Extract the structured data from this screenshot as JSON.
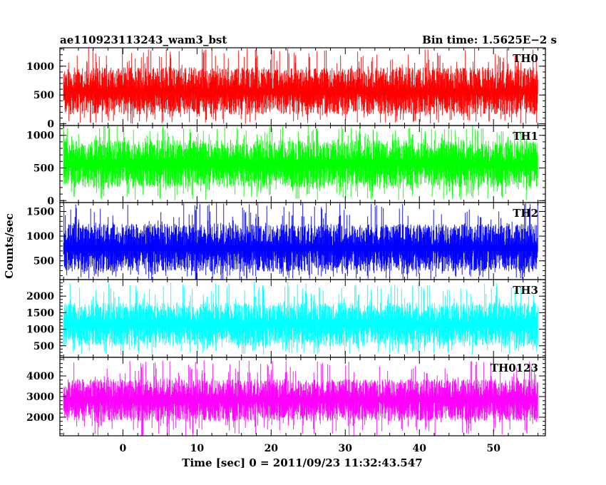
{
  "chart_data": {
    "type": "line",
    "title_left": "ae110923113243_wam3_bst",
    "title_right": "Bin time: 1.5625E−2 s",
    "xlabel": "Time [sec] 0 = 2011/09/23 11:32:43.547",
    "ylabel": "Counts/sec",
    "xlim": [
      -8.5,
      57
    ],
    "x_data_range": [
      -8,
      56
    ],
    "x_ticks": [
      0,
      10,
      20,
      30,
      40,
      50
    ],
    "x_tick_labels": [
      "0",
      "10",
      "20",
      "30",
      "40",
      "50"
    ],
    "panels": [
      {
        "name": "TH0",
        "color": "#ff0000",
        "ylim": [
          -30,
          1320
        ],
        "y_ticks": [
          0,
          500,
          1000
        ],
        "y_tick_labels": [
          "0",
          "500",
          "1000"
        ],
        "signal": {
          "mean": 560,
          "low": 160,
          "high": 980,
          "min": 0,
          "max": 1320
        }
      },
      {
        "name": "TH1",
        "color": "#00ff00",
        "ylim": [
          -30,
          1150
        ],
        "y_ticks": [
          0,
          500,
          1000
        ],
        "y_tick_labels": [
          "0",
          "500",
          "1000"
        ],
        "signal": {
          "mean": 560,
          "low": 200,
          "high": 930,
          "min": 0,
          "max": 1150
        }
      },
      {
        "name": "TH2",
        "color": "#0000ff",
        "ylim": [
          120,
          1680
        ],
        "y_ticks": [
          500,
          1000,
          1500
        ],
        "y_tick_labels": [
          "500",
          "1000",
          "1500"
        ],
        "signal": {
          "mean": 760,
          "low": 280,
          "high": 1250,
          "min": 120,
          "max": 1680
        }
      },
      {
        "name": "TH3",
        "color": "#00ffff",
        "ylim": [
          150,
          2500
        ],
        "y_ticks": [
          500,
          1000,
          1500,
          2000
        ],
        "y_tick_labels": [
          "500",
          "1000",
          "1500",
          "2000"
        ],
        "signal": {
          "mean": 1150,
          "low": 500,
          "high": 1800,
          "min": 220,
          "max": 2450
        }
      },
      {
        "name": "TH0123",
        "color": "#ff00ff",
        "ylim": [
          1100,
          4900
        ],
        "y_ticks": [
          2000,
          3000,
          4000
        ],
        "y_tick_labels": [
          "2000",
          "3000",
          "4000"
        ],
        "signal": {
          "mean": 2850,
          "low": 1800,
          "high": 3850,
          "min": 1100,
          "max": 4750
        }
      }
    ]
  }
}
